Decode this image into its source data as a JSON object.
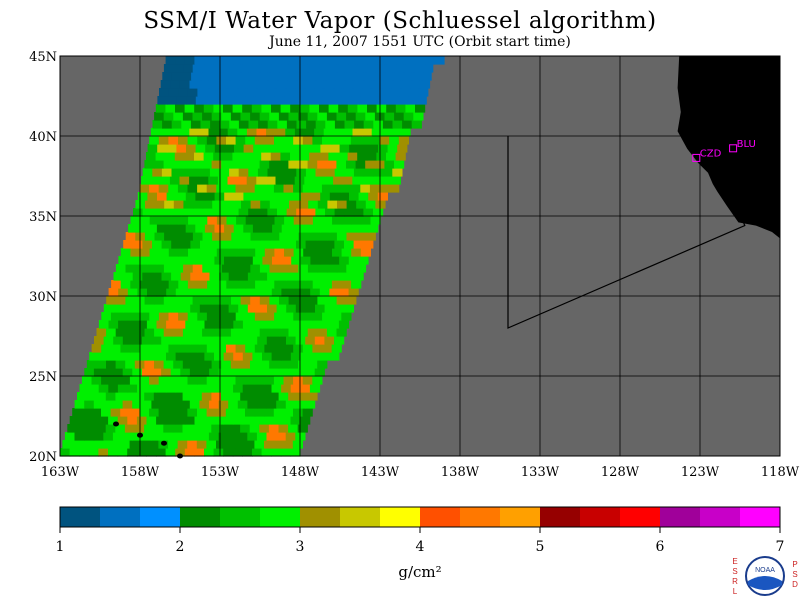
{
  "title": "SSM/I Water Vapor (Schluessel algorithm)",
  "subtitle": "June 11, 2007  1551 UTC  (Orbit start time)",
  "map": {
    "lat_range": [
      20,
      45
    ],
    "lon_range": [
      -163,
      -118
    ],
    "lat_ticks": [
      {
        "value": 45,
        "label": "45N"
      },
      {
        "value": 40,
        "label": "40N"
      },
      {
        "value": 35,
        "label": "35N"
      },
      {
        "value": 30,
        "label": "30N"
      },
      {
        "value": 25,
        "label": "25N"
      },
      {
        "value": 20,
        "label": "20N"
      }
    ],
    "lon_ticks": [
      {
        "value": -163,
        "label": "163W"
      },
      {
        "value": -158,
        "label": "158W"
      },
      {
        "value": -153,
        "label": "153W"
      },
      {
        "value": -148,
        "label": "148W"
      },
      {
        "value": -143,
        "label": "143W"
      },
      {
        "value": -138,
        "label": "138W"
      },
      {
        "value": -133,
        "label": "133W"
      },
      {
        "value": -128,
        "label": "128W"
      },
      {
        "value": -123,
        "label": "123W"
      },
      {
        "value": -118,
        "label": "118W"
      }
    ],
    "stations": [
      {
        "label": "CZD",
        "lat": 38.6,
        "lon": -123.2
      },
      {
        "label": "BLU",
        "lat": 39.2,
        "lon": -120.9
      }
    ],
    "boundary_box": [
      [
        40,
        -135
      ],
      [
        28,
        -135
      ],
      [
        34.4,
        -120.2
      ],
      [
        40.2,
        -122.5
      ]
    ],
    "colors": {
      "no_data": "#666666",
      "land": "#000000",
      "station": "#ff00ff"
    }
  },
  "colorbar": {
    "min": 1,
    "max": 7,
    "tick_labels": [
      "1",
      "2",
      "3",
      "4",
      "5",
      "6",
      "7"
    ],
    "units": "g/cm²",
    "colors": [
      "#00537f",
      "#0070c0",
      "#0090ff",
      "#008c00",
      "#00c000",
      "#00f000",
      "#a09000",
      "#c8c800",
      "#ffff00",
      "#ff5000",
      "#ff7800",
      "#ffa000",
      "#960000",
      "#c80000",
      "#ff0000",
      "#a0009a",
      "#c800c8",
      "#ff00ff"
    ]
  },
  "logo": {
    "left_letters": [
      "E",
      "S",
      "R",
      "L"
    ],
    "right_letters": [
      "P",
      "S",
      "D"
    ],
    "text": "NOAA"
  }
}
